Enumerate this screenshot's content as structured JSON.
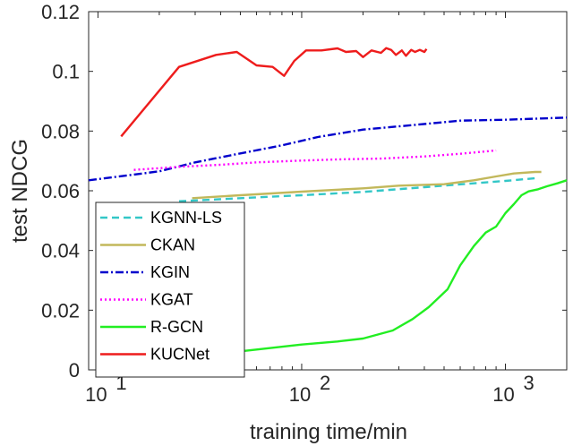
{
  "chart_data": {
    "type": "line",
    "xlabel": "training time/min",
    "ylabel": "test NDCG",
    "xscale": "log",
    "xlim": [
      9,
      2000
    ],
    "ylim": [
      0,
      0.12
    ],
    "xticks": [
      {
        "value": 10,
        "base": "10",
        "exp": "1"
      },
      {
        "value": 100,
        "base": "10",
        "exp": "2"
      },
      {
        "value": 1000,
        "base": "10",
        "exp": "3"
      }
    ],
    "yticks": [
      {
        "value": 0,
        "label": "0"
      },
      {
        "value": 0.02,
        "label": "0.02"
      },
      {
        "value": 0.04,
        "label": "0.04"
      },
      {
        "value": 0.06,
        "label": "0.06"
      },
      {
        "value": 0.08,
        "label": "0.08"
      },
      {
        "value": 0.1,
        "label": "0.1"
      },
      {
        "value": 0.12,
        "label": "0.12"
      }
    ],
    "grid": false,
    "legend_position": "bottom-left",
    "series": [
      {
        "name": "KGNN-LS",
        "color": "#33c7c7",
        "style": "dashed",
        "points": [
          [
            25,
            0.0565
          ],
          [
            50,
            0.0575
          ],
          [
            100,
            0.0585
          ],
          [
            200,
            0.0596
          ],
          [
            400,
            0.0612
          ],
          [
            700,
            0.0625
          ],
          [
            1000,
            0.0633
          ],
          [
            1400,
            0.0642
          ]
        ]
      },
      {
        "name": "CKAN",
        "color": "#c2b85b",
        "style": "solid",
        "points": [
          [
            29,
            0.0575
          ],
          [
            50,
            0.0585
          ],
          [
            100,
            0.0597
          ],
          [
            200,
            0.0608
          ],
          [
            300,
            0.0617
          ],
          [
            500,
            0.0622
          ],
          [
            700,
            0.0635
          ],
          [
            900,
            0.0648
          ],
          [
            1100,
            0.0658
          ],
          [
            1400,
            0.0663
          ],
          [
            1500,
            0.0663
          ]
        ]
      },
      {
        "name": "KGIN",
        "color": "#0000cc",
        "style": "dashdot",
        "points": [
          [
            9,
            0.0635
          ],
          [
            20,
            0.0665
          ],
          [
            30,
            0.0695
          ],
          [
            50,
            0.0725
          ],
          [
            80,
            0.0752
          ],
          [
            120,
            0.078
          ],
          [
            200,
            0.0805
          ],
          [
            350,
            0.082
          ],
          [
            600,
            0.0835
          ],
          [
            1000,
            0.0838
          ],
          [
            1500,
            0.0842
          ],
          [
            2000,
            0.0845
          ]
        ]
      },
      {
        "name": "KGAT",
        "color": "#ff00ff",
        "style": "dotted",
        "points": [
          [
            15,
            0.067
          ],
          [
            25,
            0.068
          ],
          [
            40,
            0.0687
          ],
          [
            60,
            0.0695
          ],
          [
            100,
            0.0701
          ],
          [
            150,
            0.0705
          ],
          [
            250,
            0.0708
          ],
          [
            400,
            0.0715
          ],
          [
            600,
            0.0724
          ],
          [
            900,
            0.0735
          ]
        ]
      },
      {
        "name": "R-GCN",
        "color": "#22ee22",
        "style": "solid",
        "points": [
          [
            17,
            0.0022
          ],
          [
            25,
            0.0035
          ],
          [
            40,
            0.0055
          ],
          [
            60,
            0.0068
          ],
          [
            100,
            0.0085
          ],
          [
            150,
            0.0095
          ],
          [
            200,
            0.0105
          ],
          [
            280,
            0.0132
          ],
          [
            350,
            0.017
          ],
          [
            420,
            0.021
          ],
          [
            520,
            0.027
          ],
          [
            600,
            0.035
          ],
          [
            700,
            0.0415
          ],
          [
            800,
            0.046
          ],
          [
            900,
            0.048
          ],
          [
            1000,
            0.0525
          ],
          [
            1100,
            0.0555
          ],
          [
            1200,
            0.0585
          ],
          [
            1300,
            0.0598
          ],
          [
            1450,
            0.0605
          ],
          [
            1600,
            0.0615
          ],
          [
            1800,
            0.0625
          ],
          [
            2000,
            0.0635
          ]
        ]
      },
      {
        "name": "KUCNet",
        "color": "#ee1c1c",
        "style": "solid",
        "points": [
          [
            13,
            0.0782
          ],
          [
            25,
            0.1015
          ],
          [
            38,
            0.1055
          ],
          [
            48,
            0.1065
          ],
          [
            60,
            0.102
          ],
          [
            72,
            0.1015
          ],
          [
            82,
            0.0985
          ],
          [
            92,
            0.1035
          ],
          [
            105,
            0.107
          ],
          [
            125,
            0.107
          ],
          [
            150,
            0.1077
          ],
          [
            165,
            0.1065
          ],
          [
            185,
            0.1068
          ],
          [
            200,
            0.1048
          ],
          [
            220,
            0.107
          ],
          [
            245,
            0.1062
          ],
          [
            260,
            0.1078
          ],
          [
            275,
            0.1072
          ],
          [
            290,
            0.1055
          ],
          [
            310,
            0.107
          ],
          [
            325,
            0.1052
          ],
          [
            345,
            0.1072
          ],
          [
            360,
            0.1065
          ],
          [
            380,
            0.1072
          ],
          [
            400,
            0.1065
          ],
          [
            410,
            0.1075
          ]
        ]
      }
    ]
  }
}
